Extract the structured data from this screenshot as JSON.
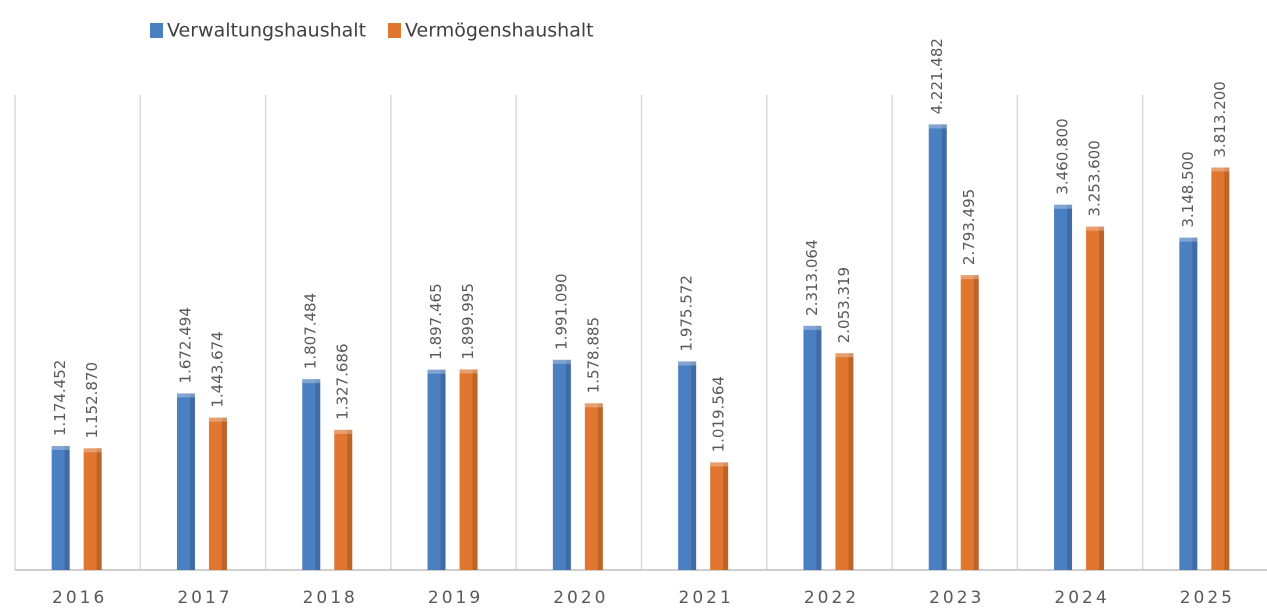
{
  "chart_data": {
    "type": "bar",
    "categories": [
      "2016",
      "2017",
      "2018",
      "2019",
      "2020",
      "2021",
      "2022",
      "2023",
      "2024",
      "2025"
    ],
    "series": [
      {
        "name": "Verwaltungshaushalt",
        "color": "#4a7fc1",
        "values": [
          1174452,
          1672494,
          1807484,
          1897465,
          1991090,
          1975572,
          2313064,
          4221482,
          3460800,
          3148500
        ],
        "value_labels": [
          "1.174.452",
          "1.672.494",
          "1.807.484",
          "1.897.465",
          "1.991.090",
          "1.975.572",
          "2.313.064",
          "4.221.482",
          "3.460.800",
          "3.148.500"
        ]
      },
      {
        "name": "Vermögenshaushalt",
        "color": "#e0762f",
        "values": [
          1152870,
          1443674,
          1327686,
          1899995,
          1578885,
          1019564,
          2053319,
          2793495,
          3253600,
          3813200
        ],
        "value_labels": [
          "1.152.870",
          "1.443.674",
          "1.327.686",
          "1.899.995",
          "1.578.885",
          "1.019.564",
          "2.053.319",
          "2.793.495",
          "3.253.600",
          "3.813.200"
        ]
      }
    ],
    "ylim": [
      0,
      4500000
    ],
    "legend": "top-left"
  }
}
